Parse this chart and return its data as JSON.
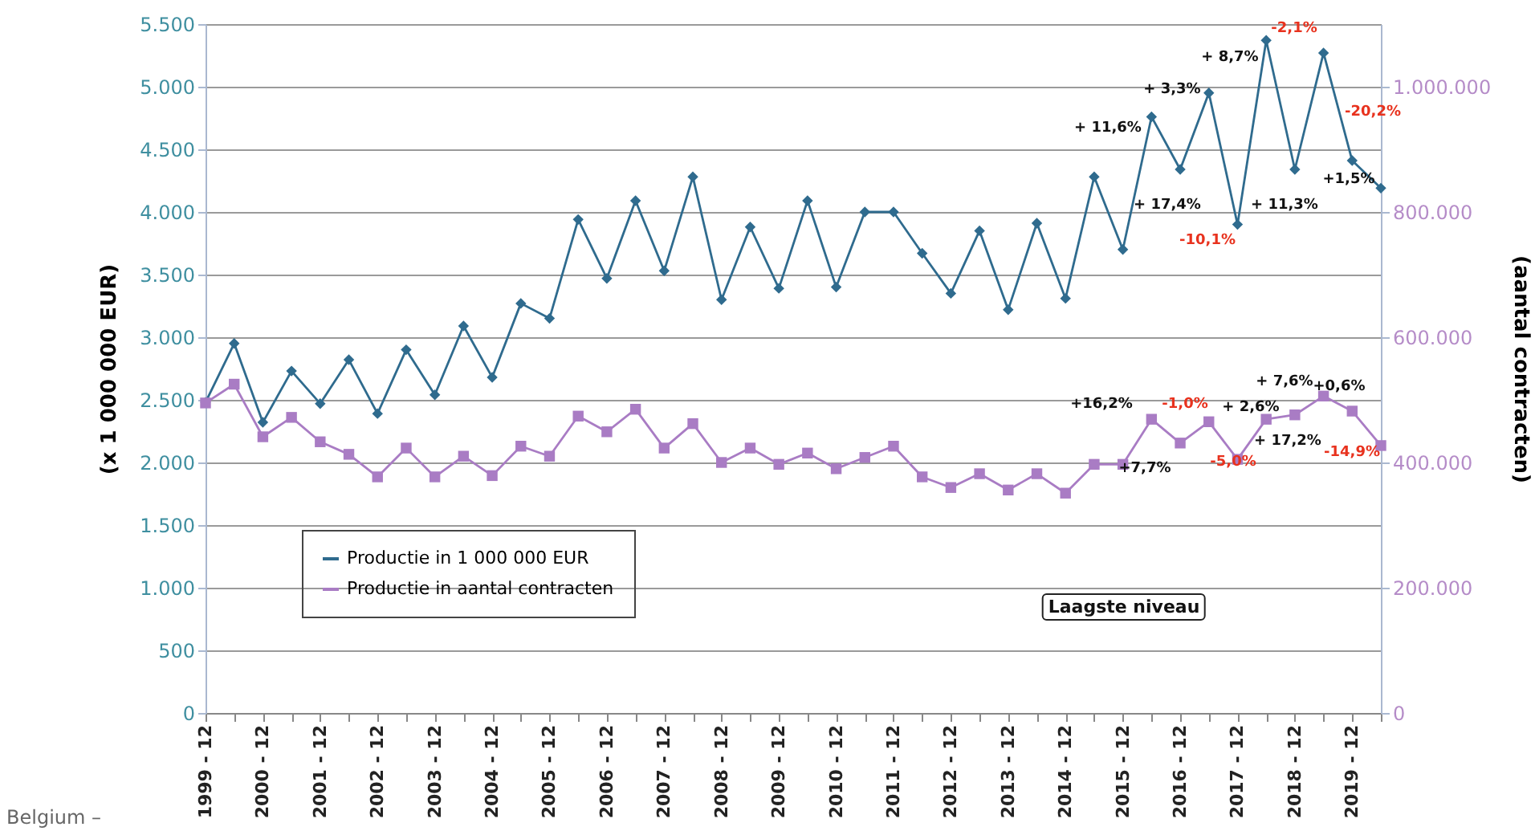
{
  "chart_data": {
    "type": "line",
    "categories": [
      "1999 - 12",
      null,
      "2000 - 12",
      null,
      "2001 - 12",
      null,
      "2002 - 12",
      null,
      "2003 - 12",
      null,
      "2004 - 12",
      null,
      "2005 - 12",
      null,
      "2006 - 12",
      null,
      "2007 - 12",
      null,
      "2008 - 12",
      null,
      "2009 - 12",
      null,
      "2010 - 12",
      null,
      "2011 - 12",
      null,
      "2012 - 12",
      null,
      "2013 - 12",
      null,
      "2014 - 12",
      null,
      "2015 - 12",
      null,
      "2016 - 12",
      null,
      "2017 - 12",
      null,
      "2018 - 12",
      null,
      "2019 - 12",
      null
    ],
    "series": [
      {
        "name": "Productie in 1 000 000 EUR",
        "color": "#2f6b8e",
        "marker": "diamond",
        "values": [
          2480,
          2950,
          2320,
          2730,
          2470,
          2820,
          2390,
          2900,
          2540,
          3090,
          2680,
          3270,
          3150,
          3940,
          3470,
          4090,
          3530,
          4280,
          3300,
          3880,
          3390,
          4090,
          3400,
          4000,
          4000,
          3670,
          3350,
          3850,
          3220,
          3910,
          3310,
          4280,
          3700,
          4760,
          4340,
          4950,
          3900,
          5370,
          4340,
          5270,
          4410,
          4190
        ]
      },
      {
        "name": "Productie in aantal contracten",
        "color": "#a97cc4",
        "marker": "square",
        "axis": "y2",
        "values": [
          495000,
          525000,
          441000,
          472000,
          433000,
          413000,
          377000,
          423000,
          377000,
          410000,
          379000,
          426000,
          410000,
          474000,
          449000,
          485000,
          423000,
          462000,
          400000,
          423000,
          397000,
          415000,
          390000,
          408000,
          426000,
          377000,
          360000,
          382000,
          356000,
          382000,
          351000,
          397000,
          397000,
          469000,
          431000,
          465000,
          405000,
          469000,
          476000,
          506000,
          482000,
          427000
        ]
      }
    ],
    "ylabel": "(x 1 000 000 EUR)",
    "y2label": "(aantal contracten)",
    "ylim": [
      0,
      5500
    ],
    "yticks": [
      0,
      {
        "value": 500,
        "label": "500"
      },
      {
        "value": 1000,
        "label": "1.000"
      },
      {
        "value": 1500,
        "label": "1.500"
      },
      {
        "value": 2000,
        "label": "2.000"
      },
      {
        "value": 2500,
        "label": "2.500"
      },
      {
        "value": 3000,
        "label": "3.000"
      },
      {
        "value": 3500,
        "label": "3.500"
      },
      {
        "value": 4000,
        "label": "4.000"
      },
      {
        "value": 4500,
        "label": "4.500"
      },
      {
        "value": 5000,
        "label": "5.000"
      },
      {
        "value": 5500,
        "label": "5.500"
      }
    ],
    "y2lim": [
      0,
      1100000
    ],
    "y2ticks": [
      0,
      {
        "value": 200000,
        "label": "200.000"
      },
      {
        "value": 400000,
        "label": "400.000"
      },
      {
        "value": 600000,
        "label": "600.000"
      },
      {
        "value": 800000,
        "label": "800.000"
      },
      {
        "value": 1000000,
        "label": "1.000.000"
      }
    ],
    "grid": "y",
    "legend": "bottom left",
    "annotations": [
      "+ 11,6%",
      "+ 3,3%",
      "+ 8,7%",
      "-2,1%",
      "-20,2%",
      "+ 17,4%",
      "-10,1%",
      "+ 11,3%",
      "+1,5%",
      "+16,2%",
      "+7,7%",
      "-1,0%",
      "-5,0%",
      "+ 2,6%",
      "+ 7,6%",
      "+ 17,2%",
      "+0,6%",
      "-14,9%",
      "Laagste niveau",
      "Belgium –"
    ]
  }
}
